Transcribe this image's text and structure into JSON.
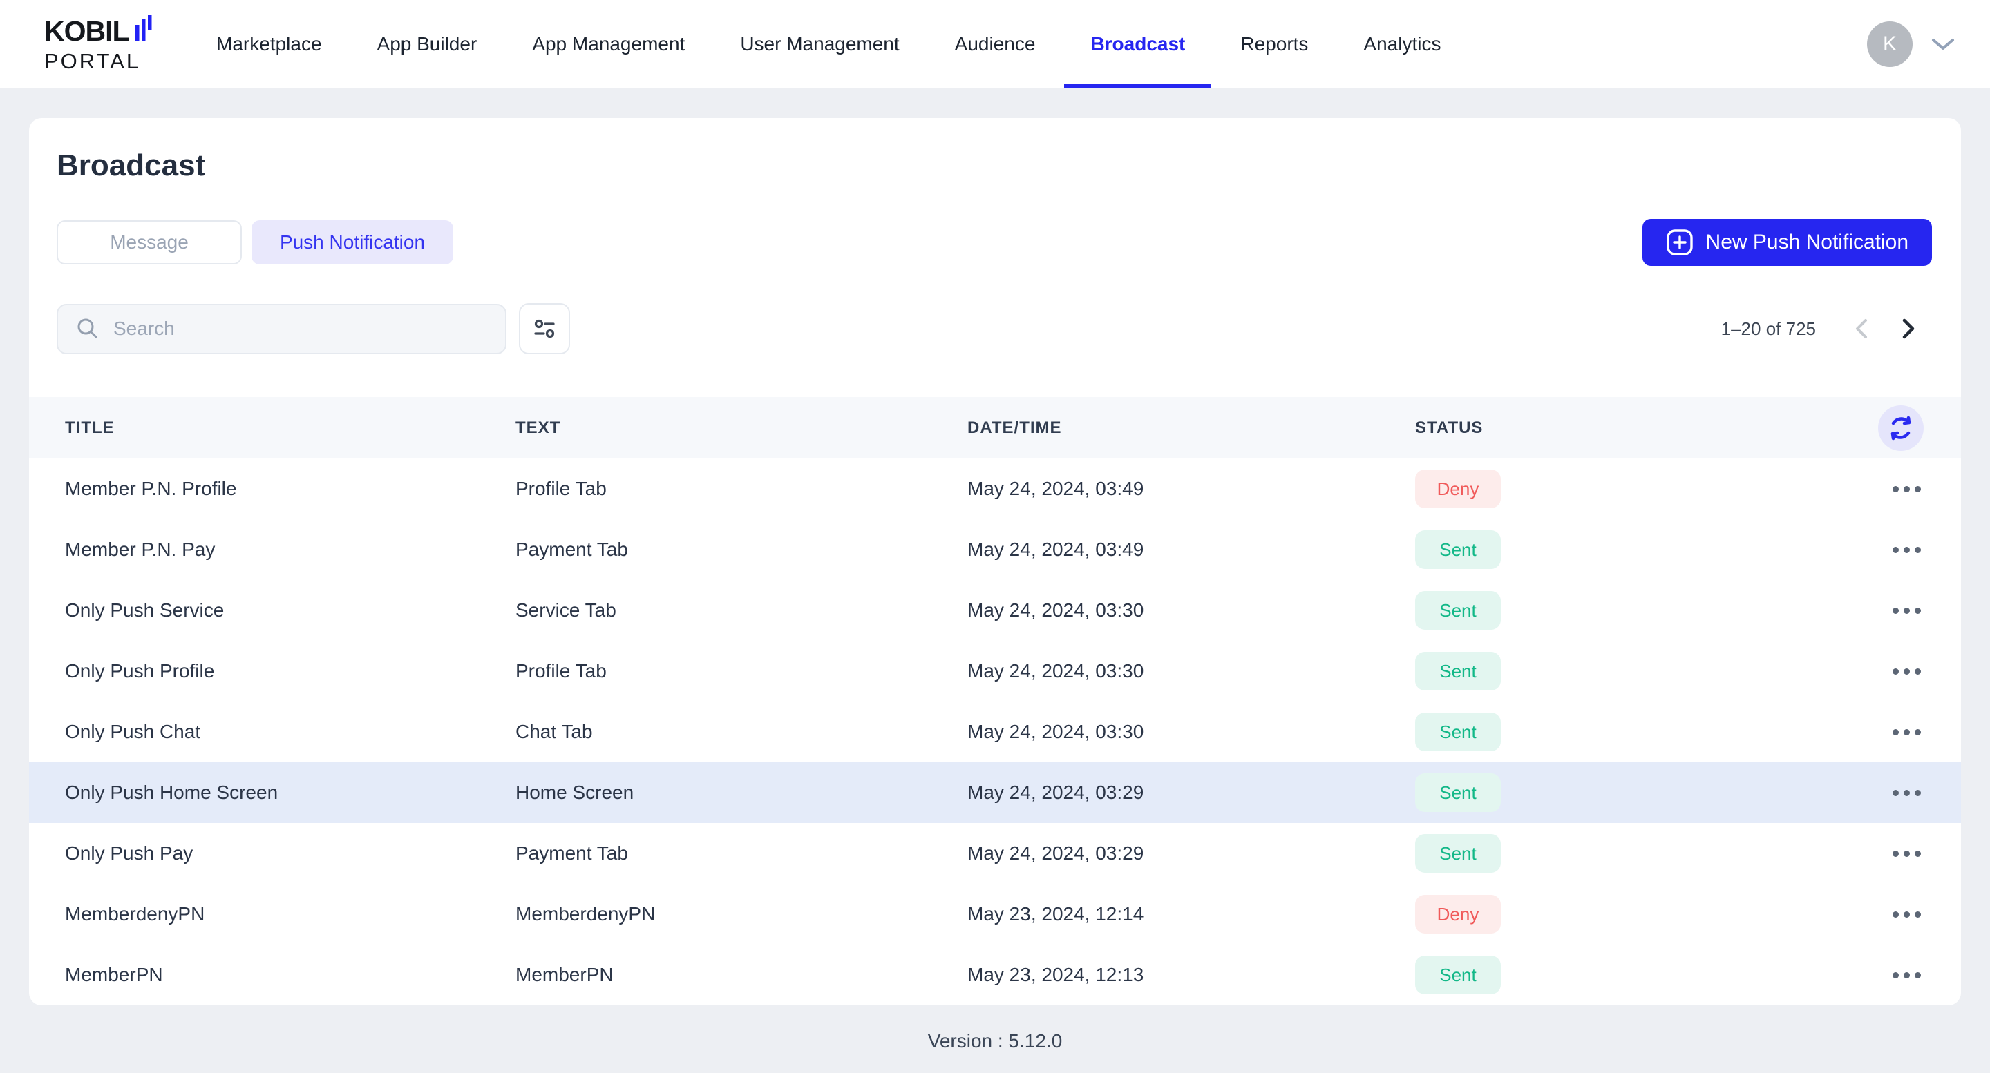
{
  "brand": {
    "name": "KOBIL",
    "sub": "PORTAL"
  },
  "nav": {
    "items": [
      {
        "label": "Marketplace",
        "active": false
      },
      {
        "label": "App Builder",
        "active": false
      },
      {
        "label": "App Management",
        "active": false
      },
      {
        "label": "User Management",
        "active": false
      },
      {
        "label": "Audience",
        "active": false
      },
      {
        "label": "Broadcast",
        "active": true
      },
      {
        "label": "Reports",
        "active": false
      },
      {
        "label": "Analytics",
        "active": false
      }
    ]
  },
  "user": {
    "initial": "K"
  },
  "page": {
    "title": "Broadcast"
  },
  "tabs": {
    "message": "Message",
    "push": "Push Notification"
  },
  "actions": {
    "new_push": "New Push Notification"
  },
  "search": {
    "placeholder": "Search"
  },
  "pagination": {
    "range": "1–20 of 725"
  },
  "table": {
    "columns": {
      "title": "TITLE",
      "text": "TEXT",
      "datetime": "DATE/TIME",
      "status": "STATUS"
    },
    "rows": [
      {
        "title": "Member P.N. Profile",
        "text": "Profile Tab",
        "datetime": "May 24, 2024, 03:49",
        "status": "Deny",
        "status_type": "deny",
        "highlighted": false
      },
      {
        "title": "Member P.N. Pay",
        "text": "Payment Tab",
        "datetime": "May 24, 2024, 03:49",
        "status": "Sent",
        "status_type": "sent",
        "highlighted": false
      },
      {
        "title": "Only Push Service",
        "text": "Service Tab",
        "datetime": "May 24, 2024, 03:30",
        "status": "Sent",
        "status_type": "sent",
        "highlighted": false
      },
      {
        "title": "Only Push Profile",
        "text": "Profile Tab",
        "datetime": "May 24, 2024, 03:30",
        "status": "Sent",
        "status_type": "sent",
        "highlighted": false
      },
      {
        "title": "Only Push Chat",
        "text": "Chat Tab",
        "datetime": "May 24, 2024, 03:30",
        "status": "Sent",
        "status_type": "sent",
        "highlighted": false
      },
      {
        "title": "Only Push Home Screen",
        "text": "Home Screen",
        "datetime": "May 24, 2024, 03:29",
        "status": "Sent",
        "status_type": "sent",
        "highlighted": true
      },
      {
        "title": "Only Push Pay",
        "text": "Payment Tab",
        "datetime": "May 24, 2024, 03:29",
        "status": "Sent",
        "status_type": "sent",
        "highlighted": false
      },
      {
        "title": "MemberdenyPN",
        "text": "MemberdenyPN",
        "datetime": "May 23, 2024, 12:14",
        "status": "Deny",
        "status_type": "deny",
        "highlighted": false
      },
      {
        "title": "MemberPN",
        "text": "MemberPN",
        "datetime": "May 23, 2024, 12:13",
        "status": "Sent",
        "status_type": "sent",
        "highlighted": false
      }
    ]
  },
  "footer": {
    "version": "Version : 5.12.0"
  },
  "colors": {
    "accent": "#2626f0",
    "accent_soft": "#e9e8fc",
    "deny_bg": "#fdeceb",
    "deny_text": "#f05a5a",
    "sent_bg": "#e3f6f0",
    "sent_text": "#13b888",
    "row_highlight": "#e4ebf9",
    "page_bg": "#edeff3"
  }
}
